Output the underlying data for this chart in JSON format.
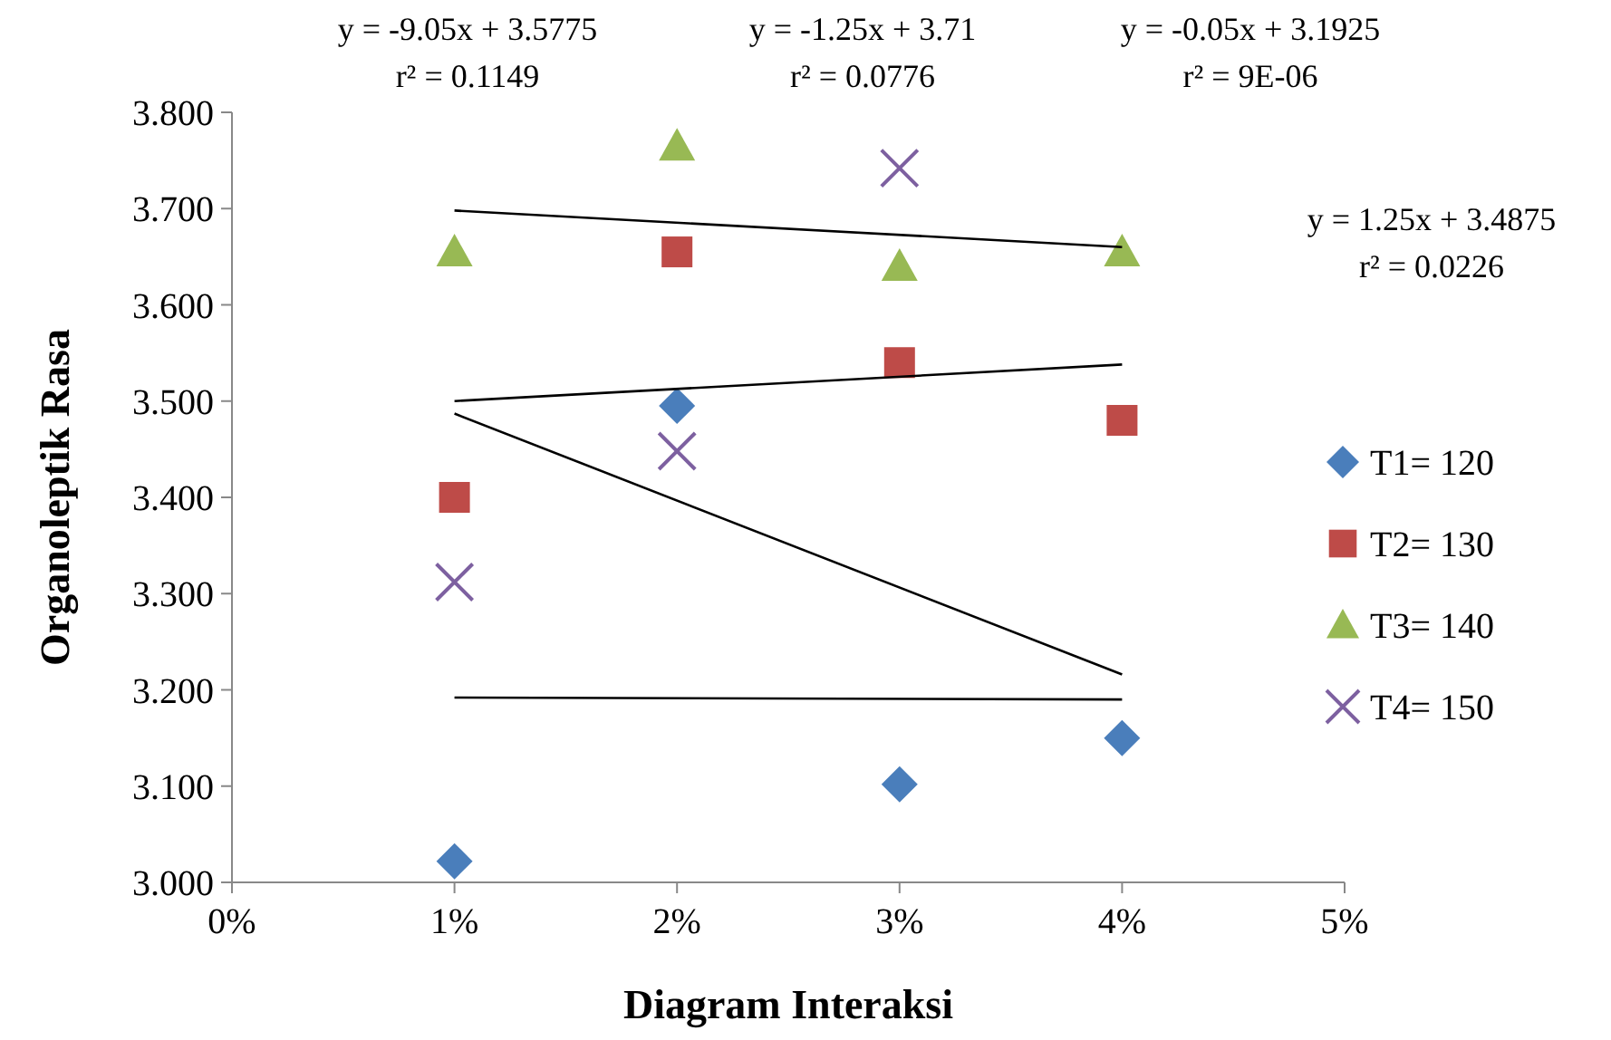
{
  "chart_data": {
    "type": "scatter",
    "xlabel": "Diagram Interaksi",
    "ylabel": "Organoleptik Rasa",
    "xlim": [
      0,
      0.05
    ],
    "xticks": [
      {
        "value": 0,
        "label": "0%"
      },
      {
        "value": 0.01,
        "label": "1%"
      },
      {
        "value": 0.02,
        "label": "2%"
      },
      {
        "value": 0.03,
        "label": "3%"
      },
      {
        "value": 0.04,
        "label": "4%"
      },
      {
        "value": 0.05,
        "label": "5%"
      }
    ],
    "ylim": [
      3,
      3.8
    ],
    "yticks": [
      {
        "value": 3,
        "label": "3.000"
      },
      {
        "value": 3.1,
        "label": "3.100"
      },
      {
        "value": 3.2,
        "label": "3.200"
      },
      {
        "value": 3.3,
        "label": "3.300"
      },
      {
        "value": 3.4,
        "label": "3.400"
      },
      {
        "value": 3.5,
        "label": "3.500"
      },
      {
        "value": 3.6,
        "label": "3.600"
      },
      {
        "value": 3.7,
        "label": "3.700"
      },
      {
        "value": 3.8,
        "label": "3.800"
      }
    ],
    "grid": false,
    "legend": "right",
    "series": [
      {
        "name": "T1= 120",
        "color": "#4a7ebb",
        "marker": "diamond",
        "x": [
          0.01,
          0.02,
          0.03,
          0.04
        ],
        "values": [
          3.022,
          3.495,
          3.102,
          3.15
        ]
      },
      {
        "name": "T2= 130",
        "color": "#be4b48",
        "marker": "square",
        "x": [
          0.01,
          0.02,
          0.03,
          0.04
        ],
        "values": [
          3.4,
          3.655,
          3.54,
          3.48
        ]
      },
      {
        "name": "T3= 140",
        "color": "#98b954",
        "marker": "triangle",
        "x": [
          0.01,
          0.02,
          0.03,
          0.04
        ],
        "values": [
          3.655,
          3.765,
          3.64,
          3.655
        ]
      },
      {
        "name": "T4= 150",
        "color": "#7d60a0",
        "marker": "cross",
        "x": [
          0.01,
          0.02,
          0.03
        ],
        "values": [
          3.312,
          3.448,
          3.742
        ]
      },
      {
        "type": "line",
        "color": "#000000",
        "marker": "none",
        "x": [
          0.01,
          0.04
        ],
        "values": [
          3.487,
          3.216
        ]
      },
      {
        "type": "line",
        "color": "#000000",
        "marker": "none",
        "x": [
          0.01,
          0.04
        ],
        "values": [
          3.698,
          3.66
        ]
      },
      {
        "type": "line",
        "color": "#000000",
        "marker": "none",
        "x": [
          0.01,
          0.04
        ],
        "values": [
          3.192,
          3.19
        ]
      },
      {
        "type": "line",
        "color": "#000000",
        "marker": "none",
        "x": [
          0.01,
          0.04
        ],
        "values": [
          3.5,
          3.538
        ]
      }
    ],
    "annotations": [
      "y = -9.05x + 3.5775\nr² = 0.1149",
      "y = -1.25x + 3.71\nr² = 0.0776",
      "y = -0.05x + 3.1925\nr² = 9E-06",
      "y = 1.25x + 3.4875\nr² = 0.0226"
    ]
  }
}
